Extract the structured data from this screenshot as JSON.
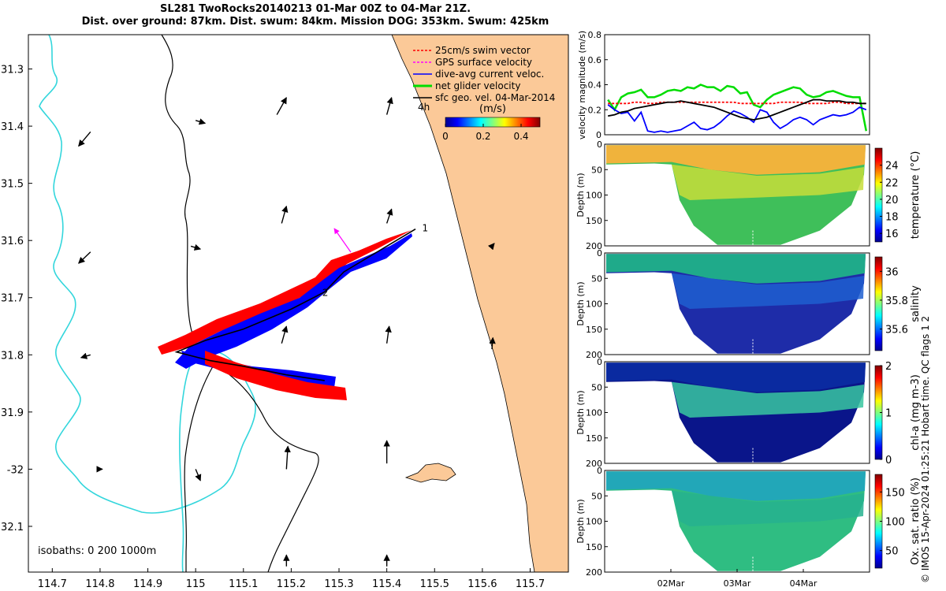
{
  "header": {
    "title_line1": "SL281 TwoRocks20140213 01-Mar 00Z to 04-Mar 21Z.",
    "title_line2": "Dist. over ground: 87km. Dist. swum: 84km. Mission DOG: 353km. Swum: 425km"
  },
  "credit": "© IMOS 15-Apr-2024 01:25:21 Hobart time. QC flags 1  2",
  "colors": {
    "land": "#fbc998",
    "coast200": "#33d6dc",
    "swim": "#ff0000",
    "gps": "#ff00ff",
    "current": "#0000ff",
    "net": "#00dd00",
    "geo": "#000000"
  },
  "chart_data": [
    {
      "type": "map",
      "xlabel": "",
      "ylabel": "",
      "xlim": [
        114.65,
        115.78
      ],
      "ylim": [
        -32.18,
        -31.24
      ],
      "x_ticks": [
        114.7,
        114.8,
        114.9,
        115,
        115.1,
        115.2,
        115.3,
        115.4,
        115.5,
        115.6,
        115.7
      ],
      "x_tick_labels": [
        "114.7",
        "114.8",
        "114.9",
        "115",
        "115.1",
        "115.2",
        "115.3",
        "115.4",
        "115.5",
        "115.6",
        "115.7"
      ],
      "y_ticks": [
        -31.3,
        -31.4,
        -31.5,
        -31.6,
        -31.7,
        -31.8,
        -31.9,
        -32.0,
        -32.1
      ],
      "y_tick_labels": [
        "31.3",
        "31.4",
        "31.5",
        "31.6",
        "31.7",
        "31.8",
        "31.9",
        "-32",
        "32.1"
      ],
      "legend": [
        {
          "label": "25cm/s swim vector",
          "color": "#ff0000"
        },
        {
          "label": "GPS surface velocity",
          "color": "#ff00ff"
        },
        {
          "label": "dive-avg current veloc.",
          "color": "#0000ff"
        },
        {
          "label": "net glider velocity",
          "color": "#00dd00"
        },
        {
          "label": "sfc geo. vel. 04-Mar-2014",
          "color": "#000000"
        }
      ],
      "scale_label": "4h",
      "colorbar": {
        "label": "(m/s)",
        "ticks": [
          "0",
          "0.2",
          "0.4"
        ],
        "range": [
          0,
          0.5
        ]
      },
      "isobaths_label": "isobaths: 0   200  1000m",
      "track_labels": [
        "1",
        "2"
      ],
      "track": [
        [
          115.46,
          -31.58
        ],
        [
          115.4,
          -31.61
        ],
        [
          115.31,
          -31.655
        ],
        [
          115.27,
          -31.69
        ],
        [
          115.2,
          -31.72
        ],
        [
          115.1,
          -31.755
        ],
        [
          115.02,
          -31.775
        ],
        [
          114.96,
          -31.795
        ],
        [
          115.03,
          -31.81
        ],
        [
          115.1,
          -31.82
        ],
        [
          115.19,
          -31.835
        ],
        [
          115.27,
          -31.845
        ]
      ],
      "geo_vectors": [
        [
          114.78,
          -31.41,
          -0.025,
          -0.025
        ],
        [
          115.0,
          -31.39,
          0.02,
          -0.005
        ],
        [
          115.17,
          -31.38,
          0.02,
          0.03
        ],
        [
          115.4,
          -31.38,
          0.01,
          0.03
        ],
        [
          114.78,
          -31.62,
          -0.025,
          -0.02
        ],
        [
          114.99,
          -31.61,
          0.02,
          -0.005
        ],
        [
          115.18,
          -31.57,
          0.01,
          0.03
        ],
        [
          115.4,
          -31.57,
          0.01,
          0.025
        ],
        [
          115.62,
          -31.61,
          0.005,
          0.005
        ],
        [
          114.78,
          -31.8,
          -0.02,
          -0.005
        ],
        [
          115.18,
          -31.78,
          0.01,
          0.03
        ],
        [
          115.4,
          -31.78,
          0.005,
          0.03
        ],
        [
          115.62,
          -31.79,
          0.002,
          0.02
        ],
        [
          115.0,
          -32.0,
          0.01,
          -0.02
        ],
        [
          115.19,
          -32.0,
          0.003,
          0.04
        ],
        [
          115.4,
          -31.99,
          0.0,
          0.04
        ],
        [
          114.8,
          -32.0,
          0.005,
          0.0
        ],
        [
          115.19,
          -32.17,
          0.0,
          0.02
        ],
        [
          115.4,
          -32.17,
          0.0,
          0.02
        ]
      ],
      "point_labels": [
        {
          "label": "1",
          "x": 115.474,
          "y": -31.577
        },
        {
          "label": "2",
          "x": 115.265,
          "y": -31.69
        }
      ]
    },
    {
      "type": "line",
      "ylabel": "velocity magnitude (m/s)",
      "ylim": [
        0,
        0.8
      ],
      "y_ticks": [
        0,
        0.2,
        0.4,
        0.6,
        0.8
      ],
      "x": [
        0,
        0.1,
        0.2,
        0.3,
        0.4,
        0.5,
        0.6,
        0.7,
        0.8,
        0.9,
        1.0,
        1.1,
        1.2,
        1.3,
        1.4,
        1.5,
        1.6,
        1.7,
        1.8,
        1.9,
        2.0,
        2.1,
        2.2,
        2.3,
        2.4,
        2.5,
        2.6,
        2.7,
        2.8,
        2.9,
        3.0,
        3.1,
        3.2,
        3.3,
        3.4,
        3.5,
        3.6,
        3.7,
        3.8,
        3.9
      ],
      "series": [
        {
          "name": "net glider velocity",
          "color": "#00dd00",
          "values": [
            0.28,
            0.2,
            0.3,
            0.33,
            0.34,
            0.36,
            0.3,
            0.3,
            0.32,
            0.35,
            0.36,
            0.35,
            0.38,
            0.37,
            0.4,
            0.38,
            0.38,
            0.35,
            0.39,
            0.38,
            0.33,
            0.34,
            0.24,
            0.22,
            0.28,
            0.32,
            0.34,
            0.36,
            0.38,
            0.37,
            0.32,
            0.3,
            0.31,
            0.34,
            0.35,
            0.33,
            0.31,
            0.3,
            0.3,
            0.03
          ]
        },
        {
          "name": "swim",
          "color": "#ff0000",
          "values": [
            0.25,
            0.25,
            0.25,
            0.25,
            0.26,
            0.26,
            0.25,
            0.25,
            0.26,
            0.26,
            0.26,
            0.26,
            0.26,
            0.26,
            0.26,
            0.26,
            0.26,
            0.26,
            0.26,
            0.26,
            0.25,
            0.25,
            0.25,
            0.25,
            0.25,
            0.25,
            0.26,
            0.26,
            0.26,
            0.26,
            0.25,
            0.25,
            0.25,
            0.25,
            0.26,
            0.26,
            0.25,
            0.25,
            0.25,
            0.25
          ]
        },
        {
          "name": "dive-avg current",
          "color": "#0000ff",
          "values": [
            0.24,
            0.2,
            0.17,
            0.18,
            0.11,
            0.18,
            0.03,
            0.02,
            0.03,
            0.02,
            0.03,
            0.04,
            0.07,
            0.1,
            0.05,
            0.04,
            0.06,
            0.1,
            0.15,
            0.19,
            0.17,
            0.14,
            0.1,
            0.2,
            0.18,
            0.1,
            0.05,
            0.08,
            0.12,
            0.14,
            0.12,
            0.08,
            0.12,
            0.14,
            0.16,
            0.15,
            0.16,
            0.18,
            0.22,
            0.2
          ]
        },
        {
          "name": "sfc geo",
          "color": "#000000",
          "values": [
            0.15,
            0.16,
            0.18,
            0.19,
            0.21,
            0.22,
            0.23,
            0.24,
            0.25,
            0.26,
            0.26,
            0.27,
            0.26,
            0.25,
            0.24,
            0.23,
            0.22,
            0.2,
            0.18,
            0.16,
            0.14,
            0.13,
            0.12,
            0.13,
            0.14,
            0.16,
            0.18,
            0.2,
            0.22,
            0.24,
            0.26,
            0.28,
            0.28,
            0.27,
            0.27,
            0.27,
            0.26,
            0.26,
            0.25,
            0.25
          ]
        }
      ]
    },
    {
      "type": "heatmap",
      "ylabel": "Depth (m)",
      "ylim": [
        200,
        0
      ],
      "y_ticks": [
        0,
        50,
        100,
        150,
        200
      ],
      "colorbar_label": "temperature (°C)",
      "colorbar_ticks": [
        16,
        18,
        20,
        22,
        24
      ],
      "crange": [
        15,
        26
      ]
    },
    {
      "type": "heatmap",
      "ylabel": "Depth (m)",
      "ylim": [
        200,
        0
      ],
      "y_ticks": [
        0,
        50,
        100,
        150,
        200
      ],
      "colorbar_label": "salinity",
      "colorbar_ticks": [
        35.6,
        35.8,
        36
      ],
      "crange": [
        35.45,
        36.1
      ],
      "colorbar_tick_labels": [
        "35.6",
        "35.8",
        "36"
      ]
    },
    {
      "type": "heatmap",
      "ylabel": "Depth (m)",
      "ylim": [
        200,
        0
      ],
      "y_ticks": [
        0,
        50,
        100,
        150,
        200
      ],
      "colorbar_label": "chl-a (mg m-3)",
      "colorbar_ticks": [
        0,
        1,
        2
      ],
      "crange": [
        0,
        2
      ]
    },
    {
      "type": "heatmap",
      "ylabel": "Depth (m)",
      "ylim": [
        200,
        0
      ],
      "y_ticks": [
        0,
        50,
        100,
        150,
        200
      ],
      "colorbar_label": "Ox. sat. ratio (%)",
      "colorbar_ticks": [
        50,
        100,
        150
      ],
      "crange": [
        20,
        180
      ],
      "x_tick_labels": [
        "02Mar",
        "03Mar",
        "04Mar"
      ],
      "x_ticks": [
        1,
        2,
        3
      ],
      "xlim": [
        0,
        4
      ]
    }
  ]
}
